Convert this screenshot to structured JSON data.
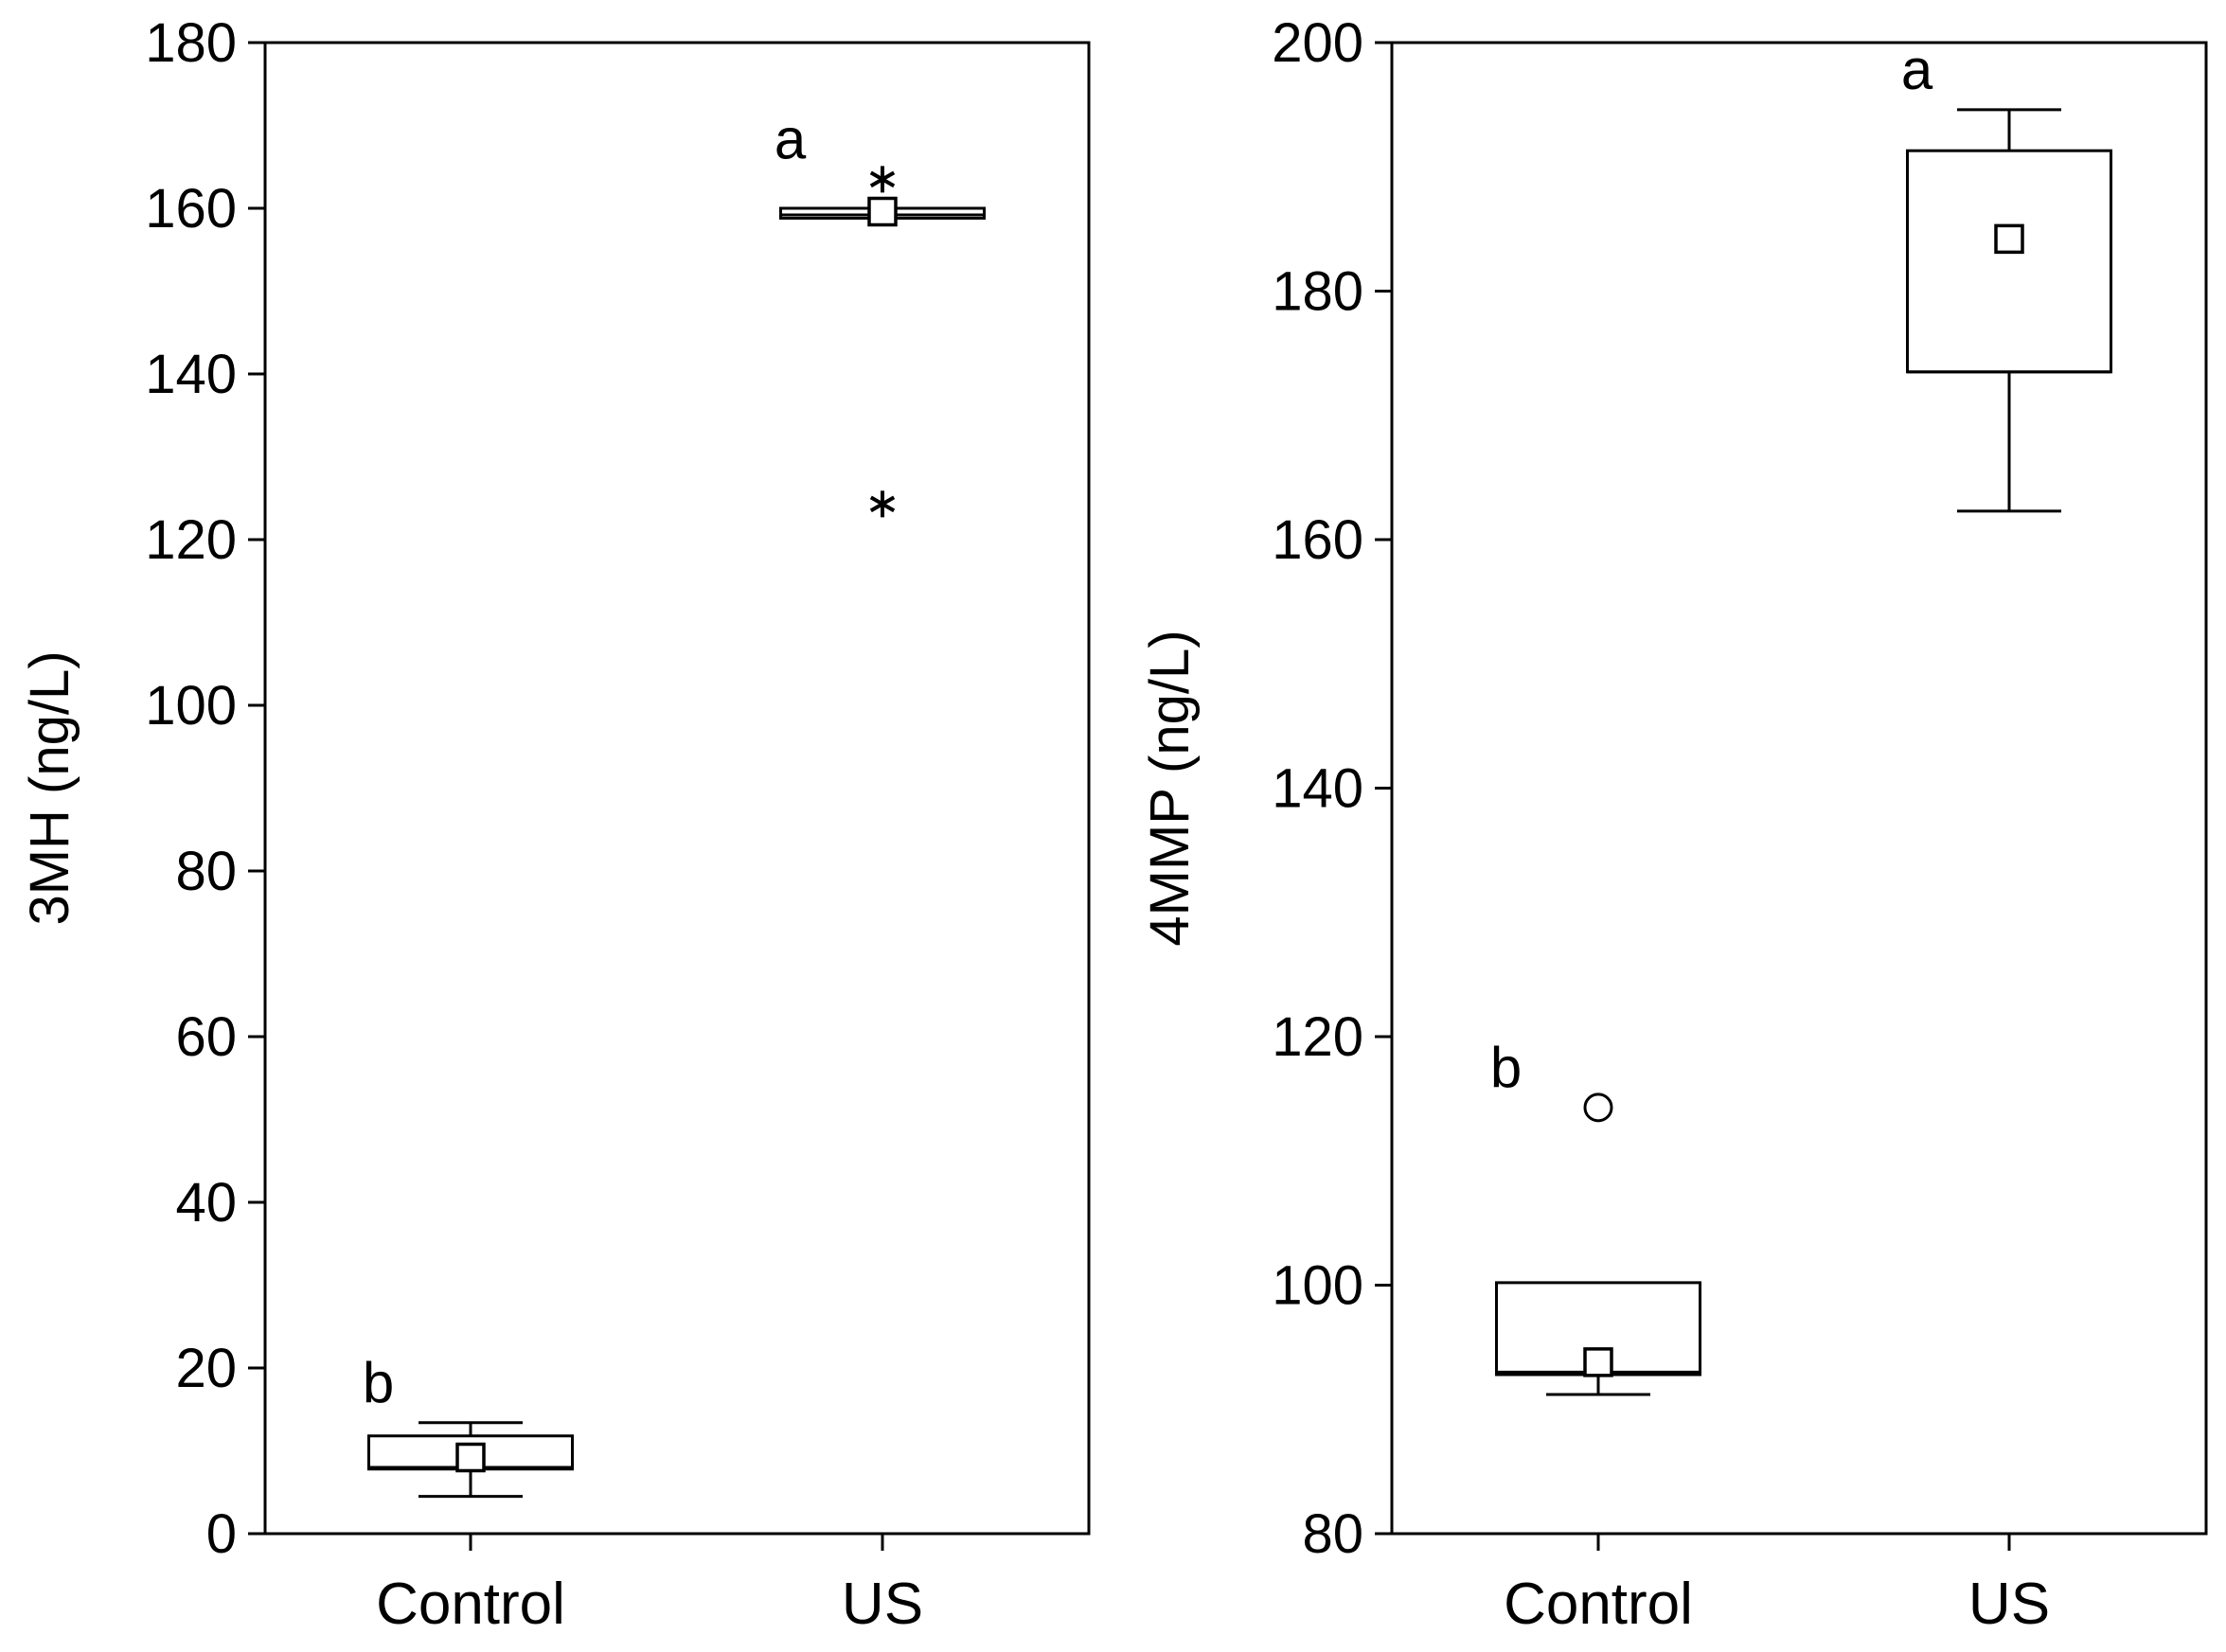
{
  "chart_data": [
    {
      "type": "box",
      "ylabel": "3MH (ng/L)",
      "xlabel": "",
      "ylim": [
        0,
        180
      ],
      "yticks": [
        0,
        20,
        40,
        60,
        80,
        100,
        120,
        140,
        160,
        180
      ],
      "ytick_labels": [
        "0",
        "20",
        "40",
        "60",
        "80",
        "100",
        "120",
        "140",
        "160",
        "180"
      ],
      "categories": [
        "Control",
        "US"
      ],
      "grid": false,
      "boxes": [
        {
          "category": "Control",
          "whisker_low": 4.5,
          "q1": 7.8,
          "median": 8.0,
          "q3": 11.8,
          "whisker_high": 13.4,
          "mean": 9.2,
          "letter": "b",
          "outliers": []
        },
        {
          "category": "US",
          "whisker_low": null,
          "q1": 158.8,
          "median": 159.2,
          "q3": 160.0,
          "whisker_high": null,
          "mean": 159.6,
          "letter": "a",
          "outliers": [
            {
              "value": 163.5,
              "marker": "asterisk"
            },
            {
              "value": 124.3,
              "marker": "asterisk"
            }
          ]
        }
      ]
    },
    {
      "type": "box",
      "ylabel": "4MMP (ng/L)",
      "xlabel": "",
      "ylim": [
        80,
        200
      ],
      "yticks": [
        80,
        100,
        120,
        140,
        160,
        180,
        200
      ],
      "ytick_labels": [
        "80",
        "100",
        "120",
        "140",
        "160",
        "180",
        "200"
      ],
      "categories": [
        "Control",
        "US"
      ],
      "grid": false,
      "boxes": [
        {
          "category": "Control",
          "whisker_low": 91.2,
          "q1": 92.8,
          "median": 93.0,
          "q3": 100.2,
          "whisker_high": null,
          "mean": 93.8,
          "letter": "b",
          "outliers": [
            {
              "value": 114.3,
              "marker": "circle"
            }
          ]
        },
        {
          "category": "US",
          "whisker_low": 162.3,
          "q1": 173.5,
          "median": 173.5,
          "q3": 191.3,
          "whisker_high": 194.6,
          "mean": 184.2,
          "letter": "a",
          "outliers": []
        }
      ]
    }
  ]
}
